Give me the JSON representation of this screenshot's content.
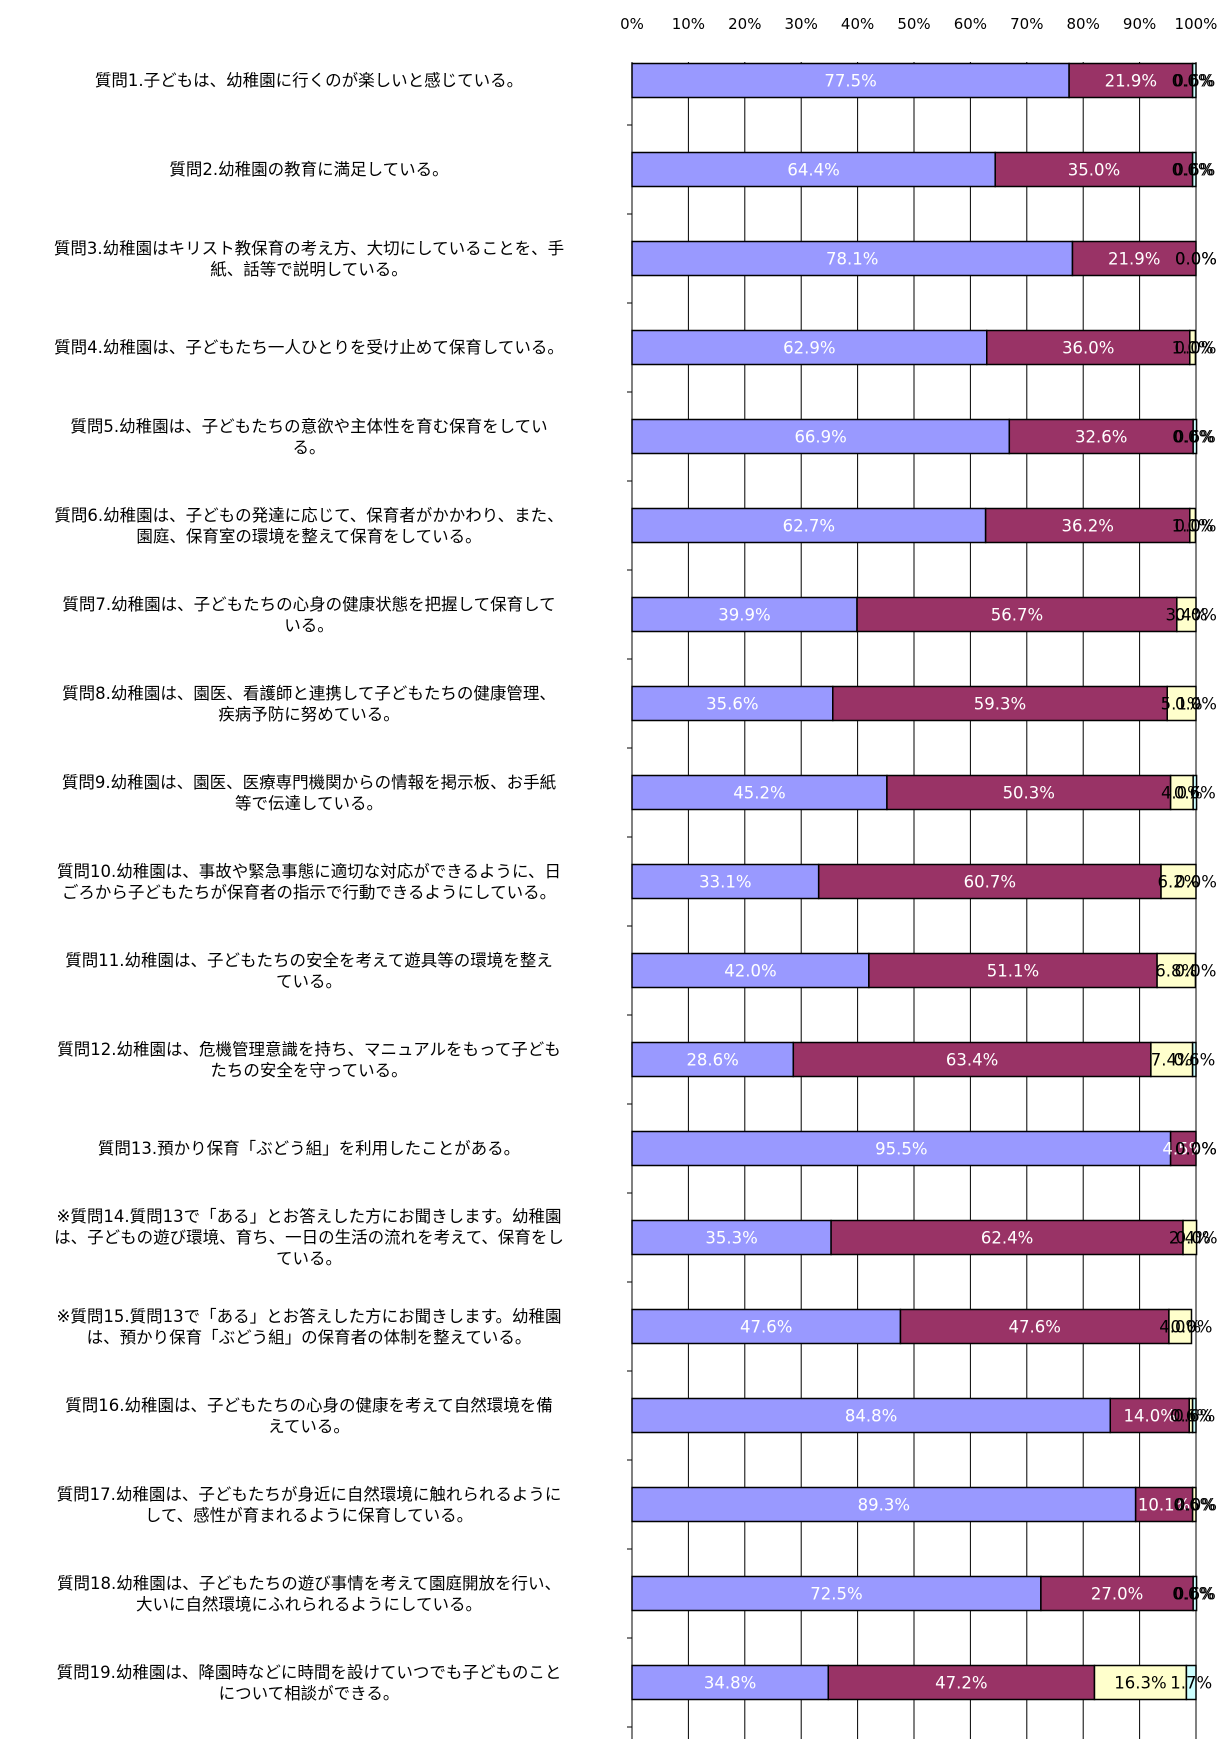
{
  "chart_data": {
    "type": "bar",
    "orientation": "horizontal",
    "stacked": true,
    "percent": true,
    "xlim": [
      0,
      100
    ],
    "x_ticks": [
      "0%",
      "10%",
      "20%",
      "30%",
      "40%",
      "50%",
      "60%",
      "70%",
      "80%",
      "90%",
      "100%"
    ],
    "grid": true,
    "legend": "none",
    "categories": [
      "質問1.子どもは、幼稚園に行くのが楽しいと感じている。",
      "質問2.幼稚園の教育に満足している。",
      "質問3.幼稚園はキリスト教保育の考え方、大切にしていることを、手紙、話等で説明している。",
      "質問4.幼稚園は、子どもたち一人ひとりを受け止めて保育している。",
      "質問5.幼稚園は、子どもたちの意欲や主体性を育む保育をしている。",
      "質問6.幼稚園は、子どもの発達に応じて、保育者がかかわり、また、園庭、保育室の環境を整えて保育をしている。",
      "質問7.幼稚園は、子どもたちの心身の健康状態を把握して保育している。",
      "質問8.幼稚園は、園医、看護師と連携して子どもたちの健康管理、疾病予防に努めている。",
      "質問9.幼稚園は、園医、医療専門機関からの情報を掲示板、お手紙等で伝達している。",
      "質問10.幼稚園は、事故や緊急事態に適切な対応ができるように、日ごろから子どもたちが保育者の指示で行動できるようにしている。",
      "質問11.幼稚園は、子どもたちの安全を考えて遊具等の環境を整えている。",
      "質問12.幼稚園は、危機管理意識を持ち、マニュアルをもって子どもたちの安全を守っている。",
      "質問13.預かり保育「ぶどう組」を利用したことがある。",
      "※質問14.質問13で「ある」とお答えした方にお聞きします。幼稚園は、子どもの遊び環境、育ち、一日の生活の流れを考えて、保育をしている。",
      "※質問15.質問13で「ある」とお答えした方にお聞きします。幼稚園は、預かり保育「ぶどう組」の保育者の体制を整えている。",
      "質問16.幼稚園は、子どもたちの心身の健康を考えて自然環境を備えている。",
      "質問17.幼稚園は、子どもたちが身近に自然環境に触れられるようにして、感性が育まれるように保育している。",
      "質問18.幼稚園は、子どもたちの遊び事情を考えて園庭開放を行い、大いに自然環境にふれられるようにしている。",
      "質問19.幼稚園は、降園時などに時間を設けていつでも子どものことについて相談ができる。"
    ],
    "label_lines": [
      [
        "質問1.子どもは、幼稚園に行くのが楽しいと感じている。"
      ],
      [
        "質問2.幼稚園の教育に満足している。"
      ],
      [
        "質問3.幼稚園はキリスト教保育の考え方、大切にしていることを、手",
        "紙、話等で説明している。"
      ],
      [
        "質問4.幼稚園は、子どもたち一人ひとりを受け止めて保育している。"
      ],
      [
        "質問5.幼稚園は、子どもたちの意欲や主体性を育む保育をしてい",
        "る。"
      ],
      [
        "質問6.幼稚園は、子どもの発達に応じて、保育者がかかわり、また、",
        "園庭、保育室の環境を整えて保育をしている。"
      ],
      [
        "質問7.幼稚園は、子どもたちの心身の健康状態を把握して保育して",
        "いる。"
      ],
      [
        "質問8.幼稚園は、園医、看護師と連携して子どもたちの健康管理、",
        "疾病予防に努めている。"
      ],
      [
        "質問9.幼稚園は、園医、医療専門機関からの情報を掲示板、お手紙",
        "等で伝達している。"
      ],
      [
        "質問10.幼稚園は、事故や緊急事態に適切な対応ができるように、日",
        "ごろから子どもたちが保育者の指示で行動できるようにしている。"
      ],
      [
        "質問11.幼稚園は、子どもたちの安全を考えて遊具等の環境を整え",
        "ている。"
      ],
      [
        "質問12.幼稚園は、危機管理意識を持ち、マニュアルをもって子ども",
        "たちの安全を守っている。"
      ],
      [
        "質問13.預かり保育「ぶどう組」を利用したことがある。"
      ],
      [
        "※質問14.質問13で「ある」とお答えした方にお聞きします。幼稚園",
        "は、子どもの遊び環境、育ち、一日の生活の流れを考えて、保育をし",
        "ている。"
      ],
      [
        "※質問15.質問13で「ある」とお答えした方にお聞きします。幼稚園",
        "は、預かり保育「ぶどう組」の保育者の体制を整えている。"
      ],
      [
        "質問16.幼稚園は、子どもたちの心身の健康を考えて自然環境を備",
        "えている。"
      ],
      [
        "質問17.幼稚園は、子どもたちが身近に自然環境に触れられるように",
        "して、感性が育まれるように保育している。"
      ],
      [
        "質問18.幼稚園は、子どもたちの遊び事情を考えて園庭開放を行い、",
        "大いに自然環境にふれられるようにしている。"
      ],
      [
        "質問19.幼稚園は、降園時などに時間を設けていつでも子どものこと",
        "について相談ができる。"
      ]
    ],
    "series": [
      {
        "color": "#9999ff",
        "label_color": "#ffffff",
        "values": [
          77.5,
          64.4,
          78.1,
          62.9,
          66.9,
          62.7,
          39.9,
          35.6,
          45.2,
          33.1,
          42.0,
          28.6,
          95.5,
          35.3,
          47.6,
          84.8,
          89.3,
          72.5,
          34.8
        ],
        "labels": [
          "77.5%",
          "64.4%",
          "78.1%",
          "62.9%",
          "66.9%",
          "62.7%",
          "39.9%",
          "35.6%",
          "45.2%",
          "33.1%",
          "42.0%",
          "28.6%",
          "95.5%",
          "35.3%",
          "47.6%",
          "84.8%",
          "89.3%",
          "72.5%",
          "34.8%"
        ]
      },
      {
        "color": "#993366",
        "label_color": "#ffffff",
        "values": [
          21.9,
          35.0,
          21.9,
          36.0,
          32.6,
          36.2,
          56.7,
          59.3,
          50.3,
          60.7,
          51.1,
          63.4,
          4.5,
          62.4,
          47.6,
          14.0,
          10.1,
          27.0,
          47.2
        ],
        "labels": [
          "21.9%",
          "35.0%",
          "21.9%",
          "36.0%",
          "32.6%",
          "36.2%",
          "56.7%",
          "59.3%",
          "50.3%",
          "60.7%",
          "51.1%",
          "63.4%",
          "4.5%",
          "62.4%",
          "47.6%",
          "14.0%",
          "10.1%",
          "27.0%",
          "47.2%"
        ]
      },
      {
        "color": "#ffffcc",
        "label_color": "#000000",
        "values": [
          0.0,
          0.0,
          0.0,
          1.0,
          0.0,
          1.0,
          3.4,
          5.1,
          4.0,
          6.2,
          6.8,
          7.4,
          0.0,
          2.4,
          4.0,
          0.6,
          0.6,
          0.0,
          16.3
        ],
        "labels": [
          "0.0%",
          "0.0%",
          "0.0%",
          "1.0%",
          "0.0%",
          "1.0%",
          "3.4%",
          "5.1%",
          "4.0%",
          "6.2%",
          "6.8%",
          "7.4%",
          "0.0%",
          "2.4%",
          "4.0%",
          "0.6%",
          "0.6%",
          "0.0%",
          "16.3%"
        ]
      },
      {
        "color": "#ccffff",
        "label_color": "#000000",
        "values": [
          0.6,
          0.6,
          0.0,
          0.0,
          0.6,
          0.0,
          0.0,
          0.0,
          0.6,
          0.0,
          0.0,
          0.6,
          0.0,
          0.0,
          0.0,
          0.6,
          0.0,
          0.6,
          1.7
        ],
        "labels": [
          "0.6%",
          "0.6%",
          "0.0%",
          "0.0%",
          "0.6%",
          "0.0%",
          "0.0%",
          "0.0%",
          "0.6%",
          "0.0%",
          "0.0%",
          "0.6%",
          "0.0%",
          "0.0%",
          "0.0%",
          "0.6%",
          "0.0%",
          "0.6%",
          "1.7%"
        ]
      }
    ]
  }
}
